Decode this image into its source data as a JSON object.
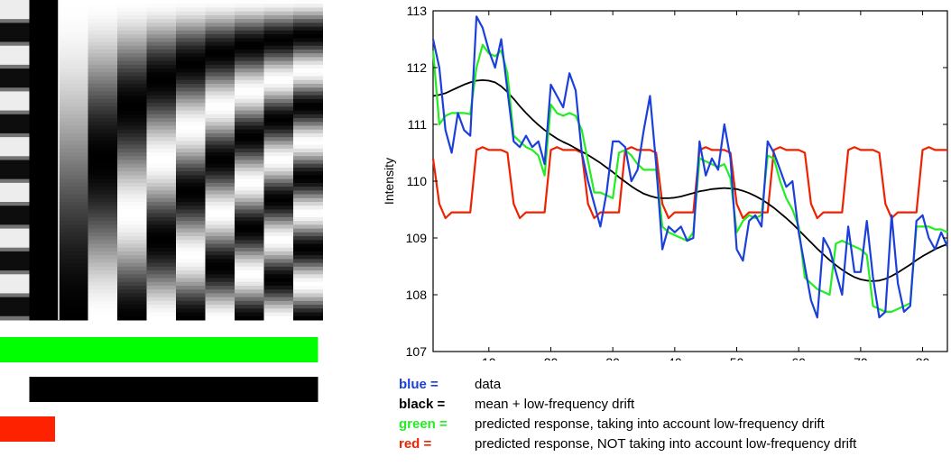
{
  "design": {
    "column_count": 11,
    "row_samples": 84,
    "bars": [
      {
        "name": "green-bar",
        "color": "#00ff00",
        "start_column": 0,
        "end_column": 11
      },
      {
        "name": "black-bar",
        "color": "#000000",
        "start_column": 1,
        "end_column": 11
      },
      {
        "name": "red-bar",
        "color": "#ff2200",
        "start_column": 0,
        "end_column": 2
      }
    ]
  },
  "chart_data": {
    "type": "line",
    "ylabel": "Intensity",
    "xlabel": "",
    "xlim": [
      1,
      84
    ],
    "ylim": [
      107,
      113
    ],
    "xticks": [
      10,
      20,
      30,
      40,
      50,
      60,
      70,
      80
    ],
    "yticks": [
      107,
      108,
      109,
      110,
      111,
      112,
      113
    ],
    "grid": false,
    "x": [
      1,
      2,
      3,
      4,
      5,
      6,
      7,
      8,
      9,
      10,
      11,
      12,
      13,
      14,
      15,
      16,
      17,
      18,
      19,
      20,
      21,
      22,
      23,
      24,
      25,
      26,
      27,
      28,
      29,
      30,
      31,
      32,
      33,
      34,
      35,
      36,
      37,
      38,
      39,
      40,
      41,
      42,
      43,
      44,
      45,
      46,
      47,
      48,
      49,
      50,
      51,
      52,
      53,
      54,
      55,
      56,
      57,
      58,
      59,
      60,
      61,
      62,
      63,
      64,
      65,
      66,
      67,
      68,
      69,
      70,
      71,
      72,
      73,
      74,
      75,
      76,
      77,
      78,
      79,
      80,
      81,
      82,
      83,
      84
    ],
    "series": [
      {
        "name": "blue",
        "color": "#1a3fdb",
        "values": [
          112.5,
          112.0,
          110.9,
          110.5,
          111.2,
          110.9,
          110.8,
          112.9,
          112.7,
          112.3,
          112.0,
          112.5,
          111.6,
          110.7,
          110.6,
          110.8,
          110.6,
          110.7,
          110.3,
          111.7,
          111.5,
          111.3,
          111.9,
          111.6,
          110.5,
          110.0,
          109.6,
          109.2,
          109.8,
          110.7,
          110.7,
          110.6,
          110.0,
          110.2,
          110.9,
          111.5,
          110.3,
          108.8,
          109.2,
          109.1,
          109.2,
          108.95,
          109.0,
          110.7,
          110.1,
          110.4,
          110.2,
          111.0,
          110.4,
          108.8,
          108.6,
          109.3,
          109.4,
          109.2,
          110.7,
          110.5,
          110.2,
          109.9,
          110.0,
          109.1,
          108.5,
          107.9,
          107.6,
          109.0,
          108.8,
          108.4,
          108.0,
          109.2,
          108.4,
          108.4,
          109.3,
          108.3,
          107.6,
          107.7,
          109.4,
          108.2,
          107.7,
          107.8,
          109.3,
          109.4,
          109.0,
          108.8,
          109.1,
          108.85
        ]
      },
      {
        "name": "black",
        "color": "#000000",
        "values": [
          111.5,
          111.52,
          111.55,
          111.6,
          111.65,
          111.7,
          111.74,
          111.77,
          111.78,
          111.77,
          111.74,
          111.67,
          111.57,
          111.45,
          111.32,
          111.2,
          111.09,
          110.99,
          110.9,
          110.82,
          110.75,
          110.69,
          110.64,
          110.58,
          110.52,
          110.46,
          110.39,
          110.32,
          110.24,
          110.16,
          110.07,
          109.99,
          109.91,
          109.84,
          109.78,
          109.74,
          109.71,
          109.7,
          109.7,
          109.71,
          109.73,
          109.76,
          109.79,
          109.82,
          109.84,
          109.86,
          109.87,
          109.88,
          109.87,
          109.86,
          109.83,
          109.79,
          109.74,
          109.68,
          109.61,
          109.53,
          109.44,
          109.35,
          109.25,
          109.14,
          109.03,
          108.92,
          108.81,
          108.71,
          108.61,
          108.52,
          108.44,
          108.37,
          108.31,
          108.27,
          108.25,
          108.24,
          108.25,
          108.28,
          108.33,
          108.39,
          108.46,
          108.53,
          108.61,
          108.68,
          108.74,
          108.8,
          108.85,
          108.89
        ]
      },
      {
        "name": "green",
        "color": "#22ee22",
        "values": [
          112.3,
          111.0,
          111.15,
          111.2,
          111.2,
          111.2,
          111.18,
          112.0,
          112.4,
          112.25,
          112.2,
          112.3,
          111.9,
          110.8,
          110.7,
          110.6,
          110.55,
          110.45,
          110.1,
          111.35,
          111.2,
          111.15,
          111.2,
          111.15,
          110.9,
          110.35,
          109.8,
          109.8,
          109.75,
          109.7,
          110.5,
          110.55,
          110.45,
          110.3,
          110.2,
          110.2,
          110.2,
          109.2,
          109.1,
          109.05,
          109.0,
          108.95,
          109.1,
          110.4,
          110.35,
          110.3,
          110.25,
          110.3,
          110.05,
          109.1,
          109.3,
          109.4,
          109.35,
          109.4,
          110.45,
          110.4,
          110.0,
          109.7,
          109.5,
          109.2,
          108.3,
          108.2,
          108.1,
          108.05,
          108.0,
          108.9,
          108.95,
          108.9,
          108.85,
          108.8,
          108.7,
          107.8,
          107.75,
          107.7,
          107.7,
          107.75,
          107.8,
          107.85,
          109.2,
          109.2,
          109.2,
          109.15,
          109.15,
          109.1
        ]
      },
      {
        "name": "red",
        "color": "#ee2200",
        "values": [
          110.4,
          109.6,
          109.35,
          109.45,
          109.45,
          109.45,
          109.45,
          110.55,
          110.6,
          110.55,
          110.55,
          110.55,
          110.5,
          109.6,
          109.35,
          109.45,
          109.45,
          109.45,
          109.45,
          110.55,
          110.6,
          110.55,
          110.55,
          110.55,
          110.5,
          109.6,
          109.35,
          109.45,
          109.45,
          109.45,
          109.45,
          110.55,
          110.6,
          110.55,
          110.55,
          110.55,
          110.5,
          109.6,
          109.35,
          109.45,
          109.45,
          109.45,
          109.45,
          110.55,
          110.6,
          110.55,
          110.55,
          110.55,
          110.5,
          109.6,
          109.35,
          109.45,
          109.45,
          109.45,
          109.45,
          110.55,
          110.6,
          110.55,
          110.55,
          110.55,
          110.5,
          109.6,
          109.35,
          109.45,
          109.45,
          109.45,
          109.45,
          110.55,
          110.6,
          110.55,
          110.55,
          110.55,
          110.5,
          109.6,
          109.35,
          109.45,
          109.45,
          109.45,
          109.45,
          110.55,
          110.6,
          110.55,
          110.55,
          110.55
        ]
      }
    ]
  },
  "legend": [
    {
      "key": "blue =",
      "color": "#1a3fdb",
      "desc": "data"
    },
    {
      "key": "black =",
      "color": "#000000",
      "desc": "mean + low-frequency drift"
    },
    {
      "key": "green =",
      "color": "#22ee22",
      "desc": "predicted response, taking into account low-frequency drift"
    },
    {
      "key": "red =",
      "color": "#ee2200",
      "desc": "predicted response, NOT taking into account low-frequency drift"
    }
  ]
}
